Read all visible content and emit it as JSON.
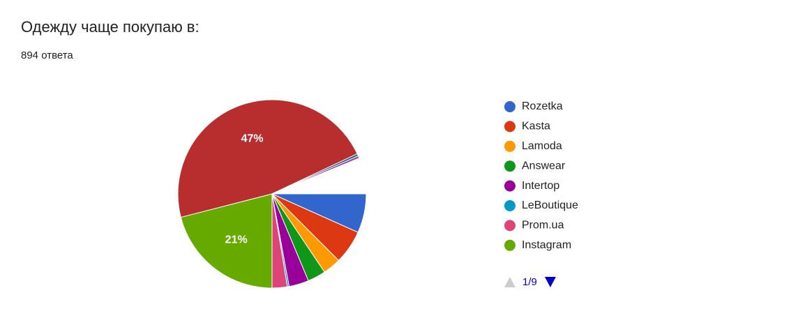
{
  "chart_data": {
    "type": "pie",
    "title": "Одежду чаще покупаю в:",
    "subtitle": "894 ответа",
    "categories": [
      "Rozetka",
      "Kasta",
      "Lamoda",
      "Answear",
      "Intertop",
      "LeBoutique",
      "Prom.ua",
      "Instagram",
      null,
      null,
      null
    ],
    "values": [
      6.7,
      5.8,
      3.1,
      3.1,
      3.4,
      0.3,
      2.6,
      21,
      47,
      0.4,
      0.4
    ],
    "value_labels": [
      null,
      null,
      null,
      null,
      null,
      null,
      null,
      "21%",
      "47%",
      null,
      null
    ],
    "colors": [
      "#3366cc",
      "#dc3912",
      "#ff9900",
      "#109618",
      "#990099",
      "#0099c6",
      "#dd4477",
      "#66aa00",
      "#b82e2e",
      "#316395",
      "#994499"
    ],
    "legend_page": "1/9"
  }
}
